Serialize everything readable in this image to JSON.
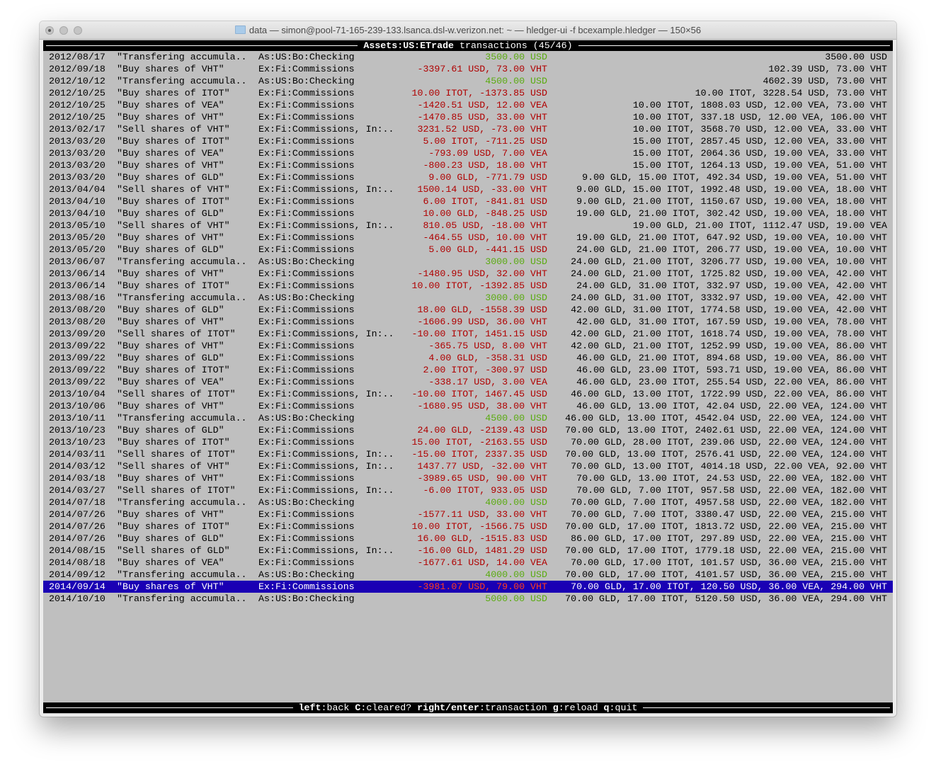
{
  "window": {
    "title": "data — simon@pool-71-165-239-133.lsanca.dsl-w.verizon.net: ~ — hledger-ui -f bcexample.hledger — 150×56"
  },
  "header": {
    "account": "Assets:US:ETrade",
    "label": "transactions",
    "position": "(45/46)"
  },
  "colors": {
    "terminal_bg": "#bfbfbf",
    "negative": "#b00000",
    "positive": "#5aab10",
    "selection_bg": "#1a00b4"
  },
  "selected_index": 44,
  "rows": [
    {
      "date": "2012/08/17",
      "desc": "\"Transfering accumula..",
      "acct": "As:US:Bo:Checking",
      "amt": "3500.00 USD",
      "amt_color": "pos",
      "bal": "3500.00 USD"
    },
    {
      "date": "2012/09/18",
      "desc": "\"Buy shares of VHT\"",
      "acct": "Ex:Fi:Commissions",
      "amt": "-3397.61 USD, 73.00 VHT",
      "amt_color": "neg",
      "bal": "102.39 USD, 73.00 VHT"
    },
    {
      "date": "2012/10/12",
      "desc": "\"Transfering accumula..",
      "acct": "As:US:Bo:Checking",
      "amt": "4500.00 USD",
      "amt_color": "pos",
      "bal": "4602.39 USD, 73.00 VHT"
    },
    {
      "date": "2012/10/25",
      "desc": "\"Buy shares of ITOT\"",
      "acct": "Ex:Fi:Commissions",
      "amt": "10.00 ITOT, -1373.85 USD",
      "amt_color": "neg",
      "bal": "10.00 ITOT, 3228.54 USD, 73.00 VHT"
    },
    {
      "date": "2012/10/25",
      "desc": "\"Buy shares of VEA\"",
      "acct": "Ex:Fi:Commissions",
      "amt": "-1420.51 USD, 12.00 VEA",
      "amt_color": "neg",
      "bal": "10.00 ITOT, 1808.03 USD, 12.00 VEA, 73.00 VHT"
    },
    {
      "date": "2012/10/25",
      "desc": "\"Buy shares of VHT\"",
      "acct": "Ex:Fi:Commissions",
      "amt": "-1470.85 USD, 33.00 VHT",
      "amt_color": "neg",
      "bal": "10.00 ITOT, 337.18 USD, 12.00 VEA, 106.00 VHT"
    },
    {
      "date": "2013/02/17",
      "desc": "\"Sell shares of VHT\"",
      "acct": "Ex:Fi:Commissions, In:..",
      "amt": "3231.52 USD, -73.00 VHT",
      "amt_color": "neg",
      "bal": "10.00 ITOT, 3568.70 USD, 12.00 VEA, 33.00 VHT"
    },
    {
      "date": "2013/03/20",
      "desc": "\"Buy shares of ITOT\"",
      "acct": "Ex:Fi:Commissions",
      "amt": "5.00 ITOT, -711.25 USD",
      "amt_color": "neg",
      "bal": "15.00 ITOT, 2857.45 USD, 12.00 VEA, 33.00 VHT"
    },
    {
      "date": "2013/03/20",
      "desc": "\"Buy shares of VEA\"",
      "acct": "Ex:Fi:Commissions",
      "amt": "-793.09 USD, 7.00 VEA",
      "amt_color": "neg",
      "bal": "15.00 ITOT, 2064.36 USD, 19.00 VEA, 33.00 VHT"
    },
    {
      "date": "2013/03/20",
      "desc": "\"Buy shares of VHT\"",
      "acct": "Ex:Fi:Commissions",
      "amt": "-800.23 USD, 18.00 VHT",
      "amt_color": "neg",
      "bal": "15.00 ITOT, 1264.13 USD, 19.00 VEA, 51.00 VHT"
    },
    {
      "date": "2013/03/20",
      "desc": "\"Buy shares of GLD\"",
      "acct": "Ex:Fi:Commissions",
      "amt": "9.00 GLD, -771.79 USD",
      "amt_color": "neg",
      "bal": "9.00 GLD, 15.00 ITOT, 492.34 USD, 19.00 VEA, 51.00 VHT"
    },
    {
      "date": "2013/04/04",
      "desc": "\"Sell shares of VHT\"",
      "acct": "Ex:Fi:Commissions, In:..",
      "amt": "1500.14 USD, -33.00 VHT",
      "amt_color": "neg",
      "bal": "9.00 GLD, 15.00 ITOT, 1992.48 USD, 19.00 VEA, 18.00 VHT"
    },
    {
      "date": "2013/04/10",
      "desc": "\"Buy shares of ITOT\"",
      "acct": "Ex:Fi:Commissions",
      "amt": "6.00 ITOT, -841.81 USD",
      "amt_color": "neg",
      "bal": "9.00 GLD, 21.00 ITOT, 1150.67 USD, 19.00 VEA, 18.00 VHT"
    },
    {
      "date": "2013/04/10",
      "desc": "\"Buy shares of GLD\"",
      "acct": "Ex:Fi:Commissions",
      "amt": "10.00 GLD, -848.25 USD",
      "amt_color": "neg",
      "bal": "19.00 GLD, 21.00 ITOT, 302.42 USD, 19.00 VEA, 18.00 VHT"
    },
    {
      "date": "2013/05/10",
      "desc": "\"Sell shares of VHT\"",
      "acct": "Ex:Fi:Commissions, In:..",
      "amt": "810.05 USD, -18.00 VHT",
      "amt_color": "neg",
      "bal": "19.00 GLD, 21.00 ITOT, 1112.47 USD, 19.00 VEA"
    },
    {
      "date": "2013/05/20",
      "desc": "\"Buy shares of VHT\"",
      "acct": "Ex:Fi:Commissions",
      "amt": "-464.55 USD, 10.00 VHT",
      "amt_color": "neg",
      "bal": "19.00 GLD, 21.00 ITOT, 647.92 USD, 19.00 VEA, 10.00 VHT"
    },
    {
      "date": "2013/05/20",
      "desc": "\"Buy shares of GLD\"",
      "acct": "Ex:Fi:Commissions",
      "amt": "5.00 GLD, -441.15 USD",
      "amt_color": "neg",
      "bal": "24.00 GLD, 21.00 ITOT, 206.77 USD, 19.00 VEA, 10.00 VHT"
    },
    {
      "date": "2013/06/07",
      "desc": "\"Transfering accumula..",
      "acct": "As:US:Bo:Checking",
      "amt": "3000.00 USD",
      "amt_color": "pos",
      "bal": "24.00 GLD, 21.00 ITOT, 3206.77 USD, 19.00 VEA, 10.00 VHT"
    },
    {
      "date": "2013/06/14",
      "desc": "\"Buy shares of VHT\"",
      "acct": "Ex:Fi:Commissions",
      "amt": "-1480.95 USD, 32.00 VHT",
      "amt_color": "neg",
      "bal": "24.00 GLD, 21.00 ITOT, 1725.82 USD, 19.00 VEA, 42.00 VHT"
    },
    {
      "date": "2013/06/14",
      "desc": "\"Buy shares of ITOT\"",
      "acct": "Ex:Fi:Commissions",
      "amt": "10.00 ITOT, -1392.85 USD",
      "amt_color": "neg",
      "bal": "24.00 GLD, 31.00 ITOT, 332.97 USD, 19.00 VEA, 42.00 VHT"
    },
    {
      "date": "2013/08/16",
      "desc": "\"Transfering accumula..",
      "acct": "As:US:Bo:Checking",
      "amt": "3000.00 USD",
      "amt_color": "pos",
      "bal": "24.00 GLD, 31.00 ITOT, 3332.97 USD, 19.00 VEA, 42.00 VHT"
    },
    {
      "date": "2013/08/20",
      "desc": "\"Buy shares of GLD\"",
      "acct": "Ex:Fi:Commissions",
      "amt": "18.00 GLD, -1558.39 USD",
      "amt_color": "neg",
      "bal": "42.00 GLD, 31.00 ITOT, 1774.58 USD, 19.00 VEA, 42.00 VHT"
    },
    {
      "date": "2013/08/20",
      "desc": "\"Buy shares of VHT\"",
      "acct": "Ex:Fi:Commissions",
      "amt": "-1606.99 USD, 36.00 VHT",
      "amt_color": "neg",
      "bal": "42.00 GLD, 31.00 ITOT, 167.59 USD, 19.00 VEA, 78.00 VHT"
    },
    {
      "date": "2013/09/20",
      "desc": "\"Sell shares of ITOT\"",
      "acct": "Ex:Fi:Commissions, In:..",
      "amt": "-10.00 ITOT, 1451.15 USD",
      "amt_color": "neg",
      "bal": "42.00 GLD, 21.00 ITOT, 1618.74 USD, 19.00 VEA, 78.00 VHT"
    },
    {
      "date": "2013/09/22",
      "desc": "\"Buy shares of VHT\"",
      "acct": "Ex:Fi:Commissions",
      "amt": "-365.75 USD, 8.00 VHT",
      "amt_color": "neg",
      "bal": "42.00 GLD, 21.00 ITOT, 1252.99 USD, 19.00 VEA, 86.00 VHT"
    },
    {
      "date": "2013/09/22",
      "desc": "\"Buy shares of GLD\"",
      "acct": "Ex:Fi:Commissions",
      "amt": "4.00 GLD, -358.31 USD",
      "amt_color": "neg",
      "bal": "46.00 GLD, 21.00 ITOT, 894.68 USD, 19.00 VEA, 86.00 VHT"
    },
    {
      "date": "2013/09/22",
      "desc": "\"Buy shares of ITOT\"",
      "acct": "Ex:Fi:Commissions",
      "amt": "2.00 ITOT, -300.97 USD",
      "amt_color": "neg",
      "bal": "46.00 GLD, 23.00 ITOT, 593.71 USD, 19.00 VEA, 86.00 VHT"
    },
    {
      "date": "2013/09/22",
      "desc": "\"Buy shares of VEA\"",
      "acct": "Ex:Fi:Commissions",
      "amt": "-338.17 USD, 3.00 VEA",
      "amt_color": "neg",
      "bal": "46.00 GLD, 23.00 ITOT, 255.54 USD, 22.00 VEA, 86.00 VHT"
    },
    {
      "date": "2013/10/04",
      "desc": "\"Sell shares of ITOT\"",
      "acct": "Ex:Fi:Commissions, In:..",
      "amt": "-10.00 ITOT, 1467.45 USD",
      "amt_color": "neg",
      "bal": "46.00 GLD, 13.00 ITOT, 1722.99 USD, 22.00 VEA, 86.00 VHT"
    },
    {
      "date": "2013/10/06",
      "desc": "\"Buy shares of VHT\"",
      "acct": "Ex:Fi:Commissions",
      "amt": "-1680.95 USD, 38.00 VHT",
      "amt_color": "neg",
      "bal": "46.00 GLD, 13.00 ITOT, 42.04 USD, 22.00 VEA, 124.00 VHT"
    },
    {
      "date": "2013/10/11",
      "desc": "\"Transfering accumula..",
      "acct": "As:US:Bo:Checking",
      "amt": "4500.00 USD",
      "amt_color": "pos",
      "bal": "46.00 GLD, 13.00 ITOT, 4542.04 USD, 22.00 VEA, 124.00 VHT"
    },
    {
      "date": "2013/10/23",
      "desc": "\"Buy shares of GLD\"",
      "acct": "Ex:Fi:Commissions",
      "amt": "24.00 GLD, -2139.43 USD",
      "amt_color": "neg",
      "bal": "70.00 GLD, 13.00 ITOT, 2402.61 USD, 22.00 VEA, 124.00 VHT"
    },
    {
      "date": "2013/10/23",
      "desc": "\"Buy shares of ITOT\"",
      "acct": "Ex:Fi:Commissions",
      "amt": "15.00 ITOT, -2163.55 USD",
      "amt_color": "neg",
      "bal": "70.00 GLD, 28.00 ITOT, 239.06 USD, 22.00 VEA, 124.00 VHT"
    },
    {
      "date": "2014/03/11",
      "desc": "\"Sell shares of ITOT\"",
      "acct": "Ex:Fi:Commissions, In:..",
      "amt": "-15.00 ITOT, 2337.35 USD",
      "amt_color": "neg",
      "bal": "70.00 GLD, 13.00 ITOT, 2576.41 USD, 22.00 VEA, 124.00 VHT"
    },
    {
      "date": "2014/03/12",
      "desc": "\"Sell shares of VHT\"",
      "acct": "Ex:Fi:Commissions, In:..",
      "amt": "1437.77 USD, -32.00 VHT",
      "amt_color": "neg",
      "bal": "70.00 GLD, 13.00 ITOT, 4014.18 USD, 22.00 VEA, 92.00 VHT"
    },
    {
      "date": "2014/03/18",
      "desc": "\"Buy shares of VHT\"",
      "acct": "Ex:Fi:Commissions",
      "amt": "-3989.65 USD, 90.00 VHT",
      "amt_color": "neg",
      "bal": "70.00 GLD, 13.00 ITOT, 24.53 USD, 22.00 VEA, 182.00 VHT"
    },
    {
      "date": "2014/03/27",
      "desc": "\"Sell shares of ITOT\"",
      "acct": "Ex:Fi:Commissions, In:..",
      "amt": "-6.00 ITOT, 933.05 USD",
      "amt_color": "neg",
      "bal": "70.00 GLD, 7.00 ITOT, 957.58 USD, 22.00 VEA, 182.00 VHT"
    },
    {
      "date": "2014/07/18",
      "desc": "\"Transfering accumula..",
      "acct": "As:US:Bo:Checking",
      "amt": "4000.00 USD",
      "amt_color": "pos",
      "bal": "70.00 GLD, 7.00 ITOT, 4957.58 USD, 22.00 VEA, 182.00 VHT"
    },
    {
      "date": "2014/07/26",
      "desc": "\"Buy shares of VHT\"",
      "acct": "Ex:Fi:Commissions",
      "amt": "-1577.11 USD, 33.00 VHT",
      "amt_color": "neg",
      "bal": "70.00 GLD, 7.00 ITOT, 3380.47 USD, 22.00 VEA, 215.00 VHT"
    },
    {
      "date": "2014/07/26",
      "desc": "\"Buy shares of ITOT\"",
      "acct": "Ex:Fi:Commissions",
      "amt": "10.00 ITOT, -1566.75 USD",
      "amt_color": "neg",
      "bal": "70.00 GLD, 17.00 ITOT, 1813.72 USD, 22.00 VEA, 215.00 VHT"
    },
    {
      "date": "2014/07/26",
      "desc": "\"Buy shares of GLD\"",
      "acct": "Ex:Fi:Commissions",
      "amt": "16.00 GLD, -1515.83 USD",
      "amt_color": "neg",
      "bal": "86.00 GLD, 17.00 ITOT, 297.89 USD, 22.00 VEA, 215.00 VHT"
    },
    {
      "date": "2014/08/15",
      "desc": "\"Sell shares of GLD\"",
      "acct": "Ex:Fi:Commissions, In:..",
      "amt": "-16.00 GLD, 1481.29 USD",
      "amt_color": "neg",
      "bal": "70.00 GLD, 17.00 ITOT, 1779.18 USD, 22.00 VEA, 215.00 VHT"
    },
    {
      "date": "2014/08/18",
      "desc": "\"Buy shares of VEA\"",
      "acct": "Ex:Fi:Commissions",
      "amt": "-1677.61 USD, 14.00 VEA",
      "amt_color": "neg",
      "bal": "70.00 GLD, 17.00 ITOT, 101.57 USD, 36.00 VEA, 215.00 VHT"
    },
    {
      "date": "2014/09/12",
      "desc": "\"Transfering accumula..",
      "acct": "As:US:Bo:Checking",
      "amt": "4000.00 USD",
      "amt_color": "pos",
      "bal": "70.00 GLD, 17.00 ITOT, 4101.57 USD, 36.00 VEA, 215.00 VHT"
    },
    {
      "date": "2014/09/14",
      "desc": "\"Buy shares of VHT\"",
      "acct": "Ex:Fi:Commissions",
      "amt": "-3981.07 USD, 79.00 VHT",
      "amt_color": "neg",
      "bal": "70.00 GLD, 17.00 ITOT, 120.50 USD, 36.00 VEA, 294.00 VHT"
    },
    {
      "date": "2014/10/10",
      "desc": "\"Transfering accumula..",
      "acct": "As:US:Bo:Checking",
      "amt": "5000.00 USD",
      "amt_color": "pos",
      "bal": "70.00 GLD, 17.00 ITOT, 5120.50 USD, 36.00 VEA, 294.00 VHT"
    }
  ],
  "footer": {
    "keys": [
      {
        "key": "left",
        "action": "back"
      },
      {
        "key": "C",
        "action": "cleared?"
      },
      {
        "key": "right/enter",
        "action": "transaction"
      },
      {
        "key": "g",
        "action": "reload"
      },
      {
        "key": "q",
        "action": "quit"
      }
    ]
  }
}
